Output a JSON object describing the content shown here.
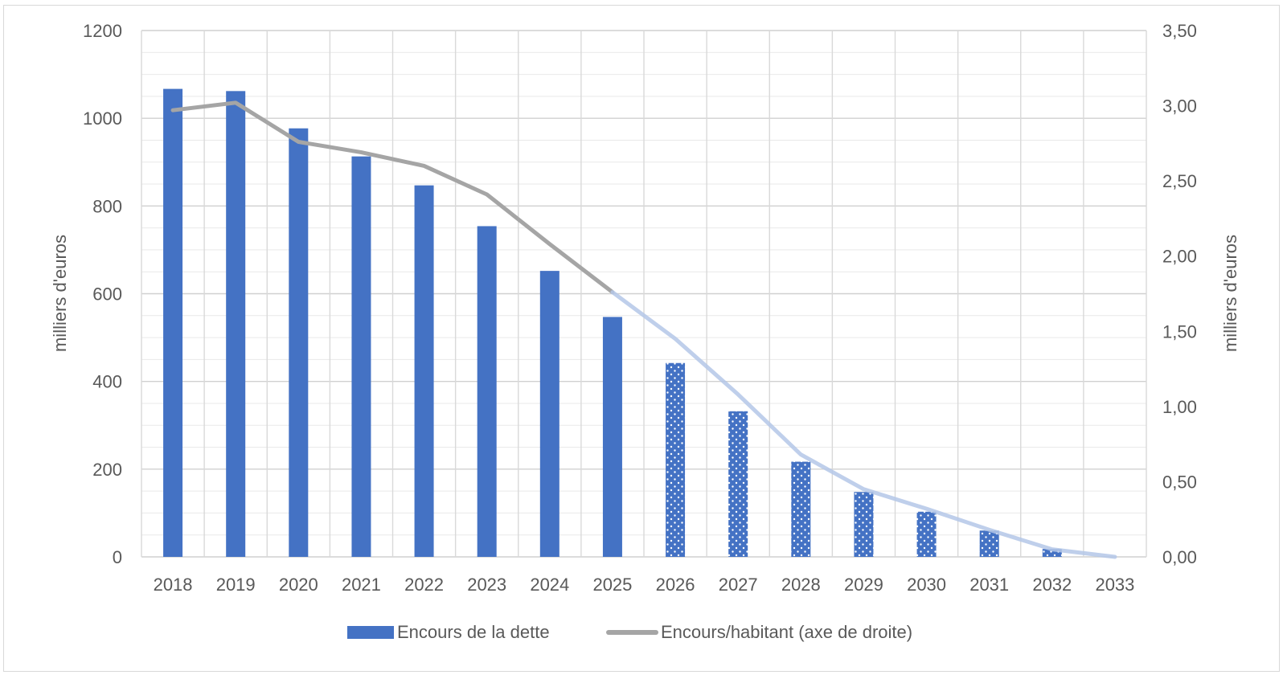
{
  "chart_data": {
    "type": "bar",
    "categories": [
      "2018",
      "2019",
      "2020",
      "2021",
      "2022",
      "2023",
      "2024",
      "2025",
      "2026",
      "2027",
      "2028",
      "2029",
      "2030",
      "2031",
      "2032",
      "2033"
    ],
    "series": [
      {
        "name": "Encours de la dette",
        "type": "bar",
        "axis": "left",
        "values": [
          1067,
          1062,
          977,
          913,
          847,
          754,
          652,
          547,
          442,
          332,
          217,
          148,
          103,
          60,
          18,
          0
        ],
        "pattern_from_category": "2026",
        "color": "#4472C4"
      },
      {
        "name": "Encours/habitant (axe de droite)",
        "type": "line",
        "axis": "right",
        "values": [
          2.97,
          3.02,
          2.76,
          2.69,
          2.6,
          2.41,
          2.08,
          1.76,
          1.45,
          1.08,
          0.68,
          0.45,
          0.32,
          0.18,
          0.05,
          0.0
        ],
        "color": "#A5A5A5",
        "faded_from_category": "2025"
      }
    ],
    "y_left": {
      "label": "milliers d'euros",
      "ylim": [
        0,
        1200
      ],
      "ticks": [
        "0",
        "200",
        "400",
        "600",
        "800",
        "1000",
        "1200"
      ]
    },
    "y_right": {
      "label": "milliers d'euros",
      "ylim": [
        0,
        3.5
      ],
      "ticks": [
        "0,00",
        "0,50",
        "1,00",
        "1,50",
        "2,00",
        "2,50",
        "3,00",
        "3,50"
      ]
    },
    "grid": "on",
    "legend_position": "bottom"
  },
  "legend": [
    {
      "label": "Encours de la dette",
      "color": "#4472C4"
    },
    {
      "label": "Encours/habitant (axe de droite)",
      "color": "#A5A5A5"
    }
  ]
}
